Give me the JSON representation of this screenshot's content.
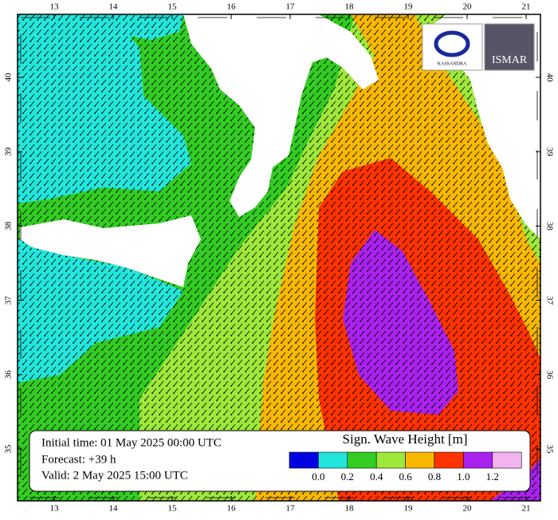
{
  "axes": {
    "lon_ticks": [
      13,
      14,
      15,
      16,
      17,
      18,
      19,
      20,
      21
    ],
    "lat_ticks": [
      35,
      36,
      37,
      38,
      39,
      40
    ]
  },
  "info": {
    "initial": "Initial time: 01 May 2025 00:00 UTC",
    "forecast": "Forecast: +39 h",
    "valid": "Valid:  2 May 2025 15:00 UTC"
  },
  "legend": {
    "title": "Sign. Wave Height [m]",
    "labels": [
      "0.0",
      "0.2",
      "0.4",
      "0.6",
      "0.8",
      "1.0",
      "1.2"
    ],
    "colors": [
      "#0000e0",
      "#22e6dc",
      "#33cc22",
      "#9de83a",
      "#f8b800",
      "#ff3300",
      "#aa22ee",
      "#f2b4f0"
    ]
  },
  "logos": {
    "left": "KASSANDRA",
    "right": "ISMAR"
  }
}
